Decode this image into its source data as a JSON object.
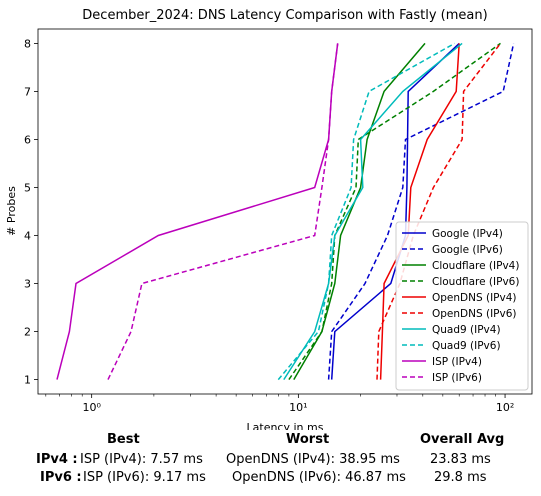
{
  "chart_data": {
    "type": "line",
    "title": "December_2024: DNS Latency Comparison with Fastly (mean)",
    "xlabel": "Latency in ms",
    "ylabel": "# Probes",
    "xscale": "log",
    "xlim": [
      0.55,
      135
    ],
    "ylim": [
      0.7,
      8.3
    ],
    "xticks": [
      1,
      10,
      100
    ],
    "xtick_labels": [
      "10⁰",
      "10¹",
      "10²"
    ],
    "yticks": [
      1,
      2,
      3,
      4,
      5,
      6,
      7,
      8
    ],
    "ytick_labels": [
      "1",
      "2",
      "3",
      "4",
      "5",
      "6",
      "7",
      "8"
    ],
    "grid": false,
    "legend_position": "lower-right",
    "series": [
      {
        "name": "Google (IPv4)",
        "color": "#0000cc",
        "dash": "solid",
        "x": [
          14.5,
          15.0,
          28.0,
          33.0,
          33.5,
          34.0,
          60.0
        ],
        "y": [
          1,
          2,
          3,
          4,
          5,
          7,
          8
        ]
      },
      {
        "name": "Google (IPv6)",
        "color": "#0000cc",
        "dash": "dashed",
        "x": [
          14.0,
          14.5,
          21.0,
          27.0,
          32.0,
          33.0,
          98.0,
          110.0
        ],
        "y": [
          1,
          2,
          3,
          4,
          5,
          6,
          7,
          8
        ]
      },
      {
        "name": "Cloudflare (IPv4)",
        "color": "#008000",
        "dash": "solid",
        "x": [
          9.5,
          13.0,
          15.0,
          16.0,
          20.0,
          21.5,
          26.0,
          41.0
        ],
        "y": [
          1,
          2,
          3,
          4,
          5,
          6,
          7,
          8
        ]
      },
      {
        "name": "Cloudflare (IPv6)",
        "color": "#008000",
        "dash": "dashed",
        "x": [
          9.0,
          13.0,
          14.5,
          15.0,
          19.0,
          19.5,
          45.0,
          95.0
        ],
        "y": [
          1,
          2,
          3,
          4,
          5,
          6,
          7,
          8
        ]
      },
      {
        "name": "OpenDNS (IPv4)",
        "color": "#ee0000",
        "dash": "solid",
        "x": [
          25.0,
          25.5,
          26.0,
          34.0,
          35.0,
          42.0,
          58.0,
          60.0
        ],
        "y": [
          1,
          2,
          3,
          4,
          5,
          6,
          7,
          8
        ]
      },
      {
        "name": "OpenDNS (IPv6)",
        "color": "#ee0000",
        "dash": "dashed",
        "x": [
          24.0,
          24.5,
          31.0,
          36.0,
          45.0,
          62.0,
          63.0,
          95.0
        ],
        "y": [
          1,
          2,
          3,
          4,
          5,
          6,
          7,
          8
        ]
      },
      {
        "name": "Quad9 (IPv4)",
        "color": "#00bbbb",
        "dash": "solid",
        "x": [
          8.5,
          12.0,
          14.0,
          15.0,
          20.5,
          20.0,
          32.0,
          62.0
        ],
        "y": [
          1,
          2,
          3,
          4,
          5,
          6,
          7,
          8
        ]
      },
      {
        "name": "Quad9 (IPv6)",
        "color": "#00bbbb",
        "dash": "dashed",
        "x": [
          8.0,
          12.5,
          14.0,
          14.5,
          18.0,
          18.5,
          22.0,
          57.0
        ],
        "y": [
          1,
          2,
          3,
          4,
          5,
          6,
          7,
          8
        ]
      },
      {
        "name": "ISP (IPv4)",
        "color": "#bb00bb",
        "dash": "solid",
        "x": [
          0.68,
          0.78,
          0.84,
          2.1,
          12.0,
          14.0,
          14.5,
          15.5
        ],
        "y": [
          1,
          2,
          3,
          4,
          5,
          6,
          7,
          8
        ]
      },
      {
        "name": "ISP (IPv6)",
        "color": "#bb00bb",
        "dash": "dashed",
        "x": [
          1.2,
          1.55,
          1.75,
          12.0,
          13.0,
          14.0,
          14.5,
          15.5
        ],
        "y": [
          1,
          2,
          3,
          4,
          5,
          6,
          7,
          8
        ]
      }
    ]
  },
  "summary": {
    "headers": {
      "best": "Best",
      "worst": "Worst",
      "avg": "Overall Avg"
    },
    "ipv4": {
      "label": "IPv4 :",
      "best": "ISP (IPv4): 7.57 ms",
      "worst": "OpenDNS (IPv4): 38.95 ms",
      "avg": "23.83 ms"
    },
    "ipv6": {
      "label": "IPv6 :",
      "best": "ISP (IPv6): 9.17 ms",
      "worst": "OpenDNS (IPv6): 46.87 ms",
      "avg": "29.8 ms"
    }
  }
}
